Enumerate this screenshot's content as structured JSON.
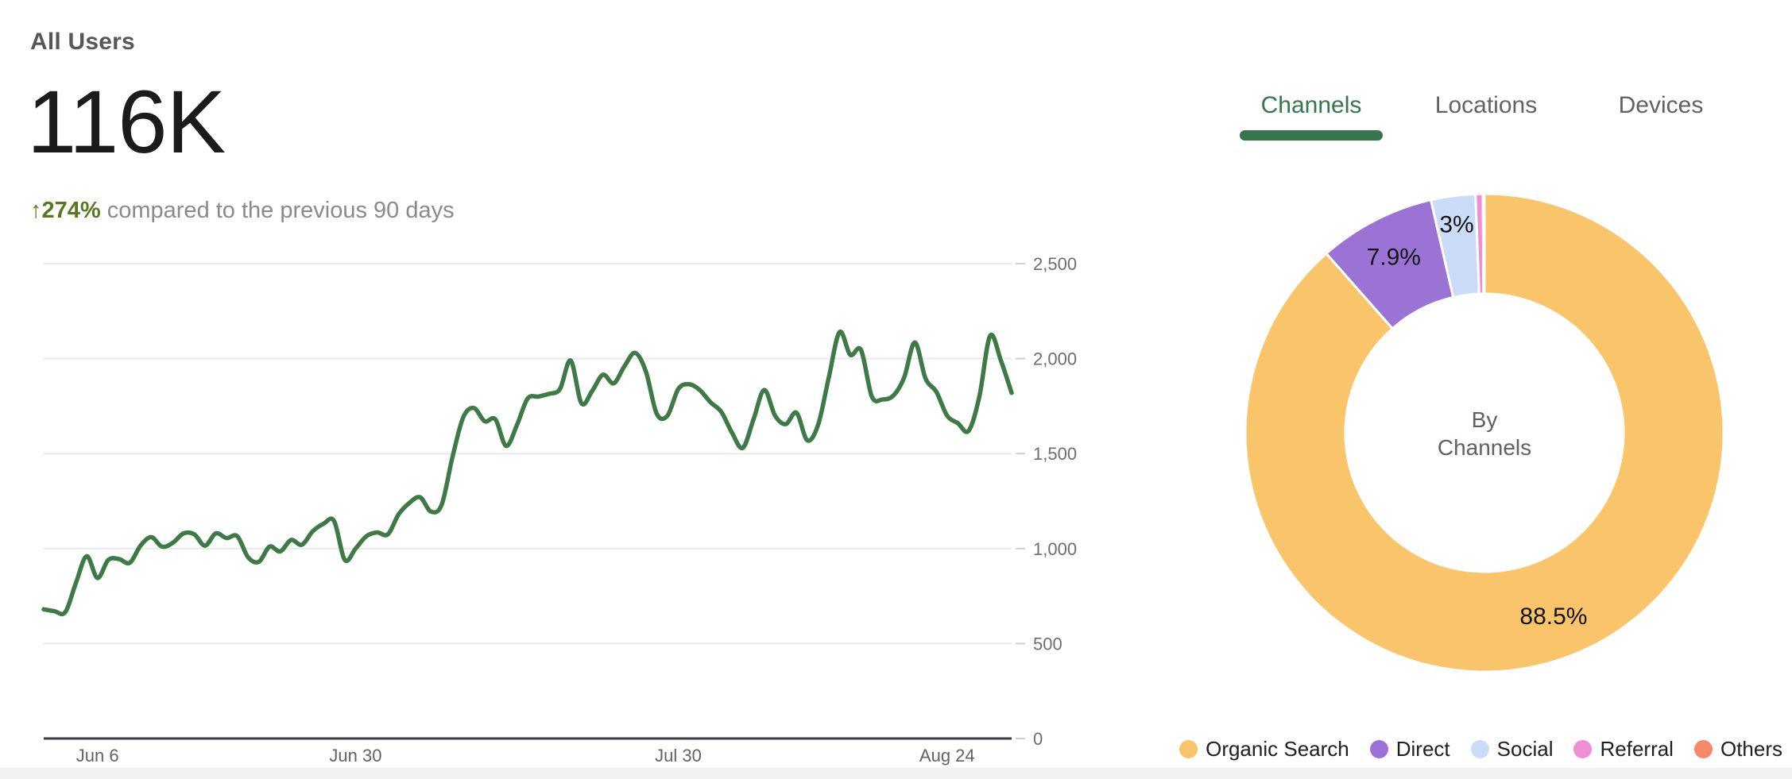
{
  "header": {
    "title": "All Users",
    "metric_value": "116K",
    "delta_arrow": "↑",
    "delta_percent": "274%",
    "delta_caption": "compared to the previous 90 days",
    "delta_color": "#55791f"
  },
  "tabs": {
    "items": [
      {
        "label": "Channels",
        "active": true
      },
      {
        "label": "Locations",
        "active": false
      },
      {
        "label": "Devices",
        "active": false
      }
    ],
    "active_color": "#36764a",
    "inactive_color": "#5f6368"
  },
  "chart_data": [
    {
      "type": "line",
      "title": "All Users over the last 90 days",
      "line_color": "#3d7a46",
      "grid": true,
      "grid_color": "#e9e9e9",
      "axis_color": "#3a3f42",
      "ylim": [
        0,
        2500
      ],
      "y_ticks": [
        {
          "value": 0,
          "label": "0"
        },
        {
          "value": 500,
          "label": "500"
        },
        {
          "value": 1000,
          "label": "1,000"
        },
        {
          "value": 1500,
          "label": "1,500"
        },
        {
          "value": 2000,
          "label": "2,000"
        },
        {
          "value": 2500,
          "label": "2,500"
        }
      ],
      "x_ticks": [
        {
          "index": 5,
          "label": "Jun 6"
        },
        {
          "index": 29,
          "label": "Jun 30"
        },
        {
          "index": 59,
          "label": "Jul 30"
        },
        {
          "index": 84,
          "label": "Aug 24"
        }
      ],
      "values": [
        680,
        670,
        665,
        820,
        960,
        845,
        940,
        945,
        925,
        1015,
        1060,
        1010,
        1030,
        1080,
        1075,
        1015,
        1080,
        1055,
        1065,
        955,
        930,
        1010,
        985,
        1045,
        1020,
        1090,
        1130,
        1145,
        940,
        1000,
        1065,
        1085,
        1075,
        1180,
        1240,
        1270,
        1195,
        1230,
        1480,
        1690,
        1740,
        1670,
        1680,
        1540,
        1650,
        1790,
        1800,
        1815,
        1840,
        1990,
        1765,
        1830,
        1915,
        1870,
        1960,
        2030,
        1930,
        1710,
        1700,
        1840,
        1865,
        1835,
        1770,
        1720,
        1610,
        1530,
        1680,
        1835,
        1700,
        1655,
        1715,
        1570,
        1650,
        1900,
        2140,
        2020,
        2045,
        1800,
        1785,
        1805,
        1900,
        2085,
        1895,
        1825,
        1700,
        1660,
        1620,
        1800,
        2120,
        1990,
        1820
      ]
    },
    {
      "type": "pie",
      "title": "By Channels",
      "center_label_line1": "By",
      "center_label_line2": "Channels",
      "center_label_color": "#5d6265",
      "slices": [
        {
          "name": "Organic Search",
          "pct": 88.5,
          "label": "88.5%",
          "color": "#f9c46a"
        },
        {
          "name": "Direct",
          "pct": 7.9,
          "label": "7.9%",
          "color": "#9b73d4"
        },
        {
          "name": "Social",
          "pct": 3.0,
          "label": "3%",
          "color": "#cbdcf8"
        },
        {
          "name": "Referral",
          "pct": 0.5,
          "label": "",
          "color": "#ee8fd6"
        },
        {
          "name": "Others",
          "pct": 0.1,
          "label": "",
          "color": "#f58a68"
        }
      ],
      "legend_position": "bottom"
    }
  ]
}
